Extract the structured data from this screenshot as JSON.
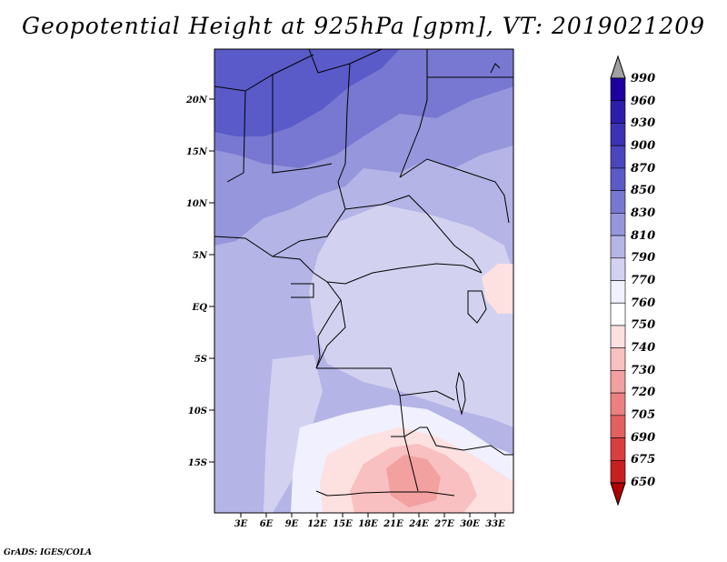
{
  "title": "Geopotential Height at 925hPa [gpm], VT: 2019021209",
  "credit": "GrADS: IGES/COLA",
  "map": {
    "lat_labels": [
      "20N",
      "15N",
      "10N",
      "5N",
      "EQ",
      "5S",
      "10S",
      "15S"
    ],
    "lon_labels": [
      "3E",
      "6E",
      "9E",
      "12E",
      "15E",
      "18E",
      "21E",
      "24E",
      "27E",
      "30E",
      "33E"
    ]
  },
  "colorbar": {
    "labels": [
      "990",
      "960",
      "930",
      "900",
      "870",
      "850",
      "830",
      "810",
      "790",
      "770",
      "760",
      "750",
      "740",
      "730",
      "720",
      "705",
      "690",
      "675",
      "650"
    ],
    "colors": [
      "#a0a0a0",
      "#1e00a0",
      "#2d1eaa",
      "#3c32b4",
      "#4b46be",
      "#5a5ac8",
      "#7878d2",
      "#9696dc",
      "#b4b4e6",
      "#d2d2f0",
      "#f0f0ff",
      "#ffffff",
      "#fde0e0",
      "#f8c0c0",
      "#f2a0a0",
      "#ec8080",
      "#e26060",
      "#d84040",
      "#c82020",
      "#b00000"
    ]
  }
}
